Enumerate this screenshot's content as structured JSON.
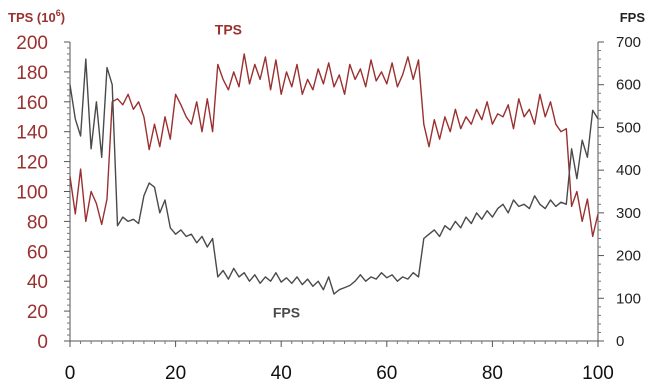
{
  "chart_data": {
    "type": "line",
    "title": "",
    "xlabel": "",
    "left_axis": {
      "label_main": "TPS (10",
      "label_sup": "6",
      "label_end": ")",
      "ylim": [
        0,
        200
      ],
      "ticks": [
        0,
        20,
        40,
        60,
        80,
        100,
        120,
        140,
        160,
        180,
        200
      ],
      "color": "#9b3030"
    },
    "right_axis": {
      "label": "FPS",
      "ylim": [
        0,
        700
      ],
      "ticks": [
        0,
        100,
        200,
        300,
        400,
        500,
        600,
        700
      ],
      "color": "#222222"
    },
    "xlim": [
      0,
      100
    ],
    "xticks": [
      0,
      20,
      40,
      60,
      80,
      100
    ],
    "grid": false,
    "legend": "none",
    "series": [
      {
        "name": "TPS",
        "axis": "left",
        "color": "#9b3030",
        "label_at": [
          30,
          205
        ],
        "x": [
          0,
          1,
          2,
          3,
          4,
          5,
          6,
          7,
          8,
          9,
          10,
          11,
          12,
          13,
          14,
          15,
          16,
          17,
          18,
          19,
          20,
          21,
          22,
          23,
          24,
          25,
          26,
          27,
          28,
          29,
          30,
          31,
          32,
          33,
          34,
          35,
          36,
          37,
          38,
          39,
          40,
          41,
          42,
          43,
          44,
          45,
          46,
          47,
          48,
          49,
          50,
          51,
          52,
          53,
          54,
          55,
          56,
          57,
          58,
          59,
          60,
          61,
          62,
          63,
          64,
          65,
          66,
          67,
          68,
          69,
          70,
          71,
          72,
          73,
          74,
          75,
          76,
          77,
          78,
          79,
          80,
          81,
          82,
          83,
          84,
          85,
          86,
          87,
          88,
          89,
          90,
          91,
          92,
          93,
          94,
          95,
          96,
          97,
          98,
          99,
          100
        ],
        "values": [
          110,
          85,
          115,
          80,
          100,
          92,
          78,
          95,
          160,
          162,
          158,
          165,
          155,
          160,
          150,
          128,
          145,
          130,
          150,
          135,
          165,
          158,
          150,
          145,
          160,
          140,
          162,
          140,
          185,
          175,
          168,
          180,
          170,
          192,
          172,
          185,
          175,
          190,
          168,
          188,
          165,
          180,
          170,
          185,
          165,
          175,
          168,
          182,
          172,
          186,
          170,
          178,
          165,
          185,
          175,
          182,
          170,
          188,
          174,
          180,
          172,
          186,
          170,
          178,
          190,
          175,
          188,
          145,
          130,
          148,
          135,
          150,
          140,
          155,
          142,
          150,
          145,
          155,
          148,
          160,
          145,
          152,
          150,
          158,
          142,
          162,
          150,
          155,
          145,
          165,
          150,
          160,
          145,
          140,
          142,
          90,
          100,
          80,
          95,
          70,
          85
        ]
      },
      {
        "name": "FPS",
        "axis": "right",
        "color": "#4a4a4a",
        "label_at": [
          41,
          55
        ],
        "x": [
          0,
          1,
          2,
          3,
          4,
          5,
          6,
          7,
          8,
          9,
          10,
          11,
          12,
          13,
          14,
          15,
          16,
          17,
          18,
          19,
          20,
          21,
          22,
          23,
          24,
          25,
          26,
          27,
          28,
          29,
          30,
          31,
          32,
          33,
          34,
          35,
          36,
          37,
          38,
          39,
          40,
          41,
          42,
          43,
          44,
          45,
          46,
          47,
          48,
          49,
          50,
          51,
          52,
          53,
          54,
          55,
          56,
          57,
          58,
          59,
          60,
          61,
          62,
          63,
          64,
          65,
          66,
          67,
          68,
          69,
          70,
          71,
          72,
          73,
          74,
          75,
          76,
          77,
          78,
          79,
          80,
          81,
          82,
          83,
          84,
          85,
          86,
          87,
          88,
          89,
          90,
          91,
          92,
          93,
          94,
          95,
          96,
          97,
          98,
          99,
          100
        ],
        "values": [
          600,
          520,
          480,
          660,
          450,
          560,
          430,
          640,
          600,
          270,
          290,
          280,
          285,
          275,
          340,
          370,
          360,
          300,
          330,
          265,
          250,
          260,
          245,
          250,
          230,
          245,
          220,
          240,
          150,
          165,
          145,
          170,
          150,
          160,
          140,
          155,
          135,
          150,
          140,
          160,
          138,
          148,
          135,
          150,
          132,
          145,
          128,
          140,
          120,
          150,
          110,
          120,
          125,
          130,
          140,
          155,
          140,
          150,
          145,
          160,
          148,
          155,
          140,
          150,
          145,
          160,
          150,
          240,
          250,
          260,
          245,
          270,
          260,
          280,
          265,
          290,
          275,
          300,
          285,
          305,
          290,
          310,
          320,
          300,
          330,
          315,
          320,
          310,
          340,
          320,
          310,
          330,
          315,
          325,
          320,
          450,
          380,
          470,
          430,
          540,
          520
        ]
      }
    ]
  }
}
